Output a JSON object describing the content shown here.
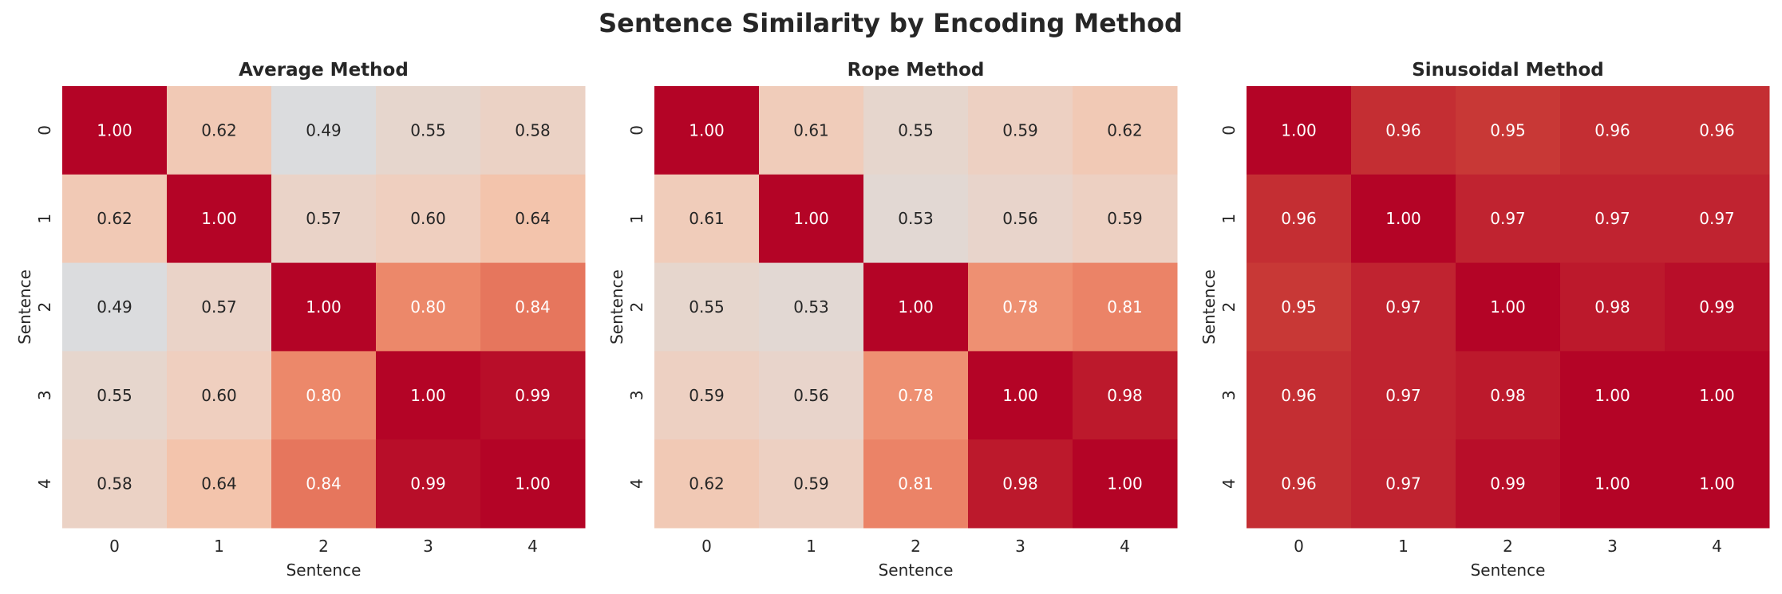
{
  "chart_data": {
    "type": "heatmap",
    "title": "Sentence Similarity by Encoding Method",
    "colormap": "coolwarm",
    "color_range": [
      0,
      1
    ],
    "colorbar": false,
    "annotation_format": "0.00",
    "panels": [
      {
        "title": "Average Method",
        "xlabel": "Sentence",
        "ylabel": "Sentence",
        "x_ticks": [
          "0",
          "1",
          "2",
          "3",
          "4"
        ],
        "y_ticks": [
          "0",
          "1",
          "2",
          "3",
          "4"
        ],
        "values": [
          [
            1.0,
            0.62,
            0.49,
            0.55,
            0.58
          ],
          [
            0.62,
            1.0,
            0.57,
            0.6,
            0.64
          ],
          [
            0.49,
            0.57,
            1.0,
            0.8,
            0.84
          ],
          [
            0.55,
            0.6,
            0.8,
            1.0,
            0.99
          ],
          [
            0.58,
            0.64,
            0.84,
            0.99,
            1.0
          ]
        ]
      },
      {
        "title": "Rope Method",
        "xlabel": "Sentence",
        "ylabel": "Sentence",
        "x_ticks": [
          "0",
          "1",
          "2",
          "3",
          "4"
        ],
        "y_ticks": [
          "0",
          "1",
          "2",
          "3",
          "4"
        ],
        "values": [
          [
            1.0,
            0.61,
            0.55,
            0.59,
            0.62
          ],
          [
            0.61,
            1.0,
            0.53,
            0.56,
            0.59
          ],
          [
            0.55,
            0.53,
            1.0,
            0.78,
            0.81
          ],
          [
            0.59,
            0.56,
            0.78,
            1.0,
            0.98
          ],
          [
            0.62,
            0.59,
            0.81,
            0.98,
            1.0
          ]
        ]
      },
      {
        "title": "Sinusoidal Method",
        "xlabel": "Sentence",
        "ylabel": "Sentence",
        "x_ticks": [
          "0",
          "1",
          "2",
          "3",
          "4"
        ],
        "y_ticks": [
          "0",
          "1",
          "2",
          "3",
          "4"
        ],
        "values": [
          [
            1.0,
            0.96,
            0.95,
            0.96,
            0.96
          ],
          [
            0.96,
            1.0,
            0.97,
            0.97,
            0.97
          ],
          [
            0.95,
            0.97,
            1.0,
            0.98,
            0.99
          ],
          [
            0.96,
            0.97,
            0.98,
            1.0,
            1.0
          ],
          [
            0.96,
            0.97,
            0.99,
            1.0,
            1.0
          ]
        ]
      }
    ]
  }
}
